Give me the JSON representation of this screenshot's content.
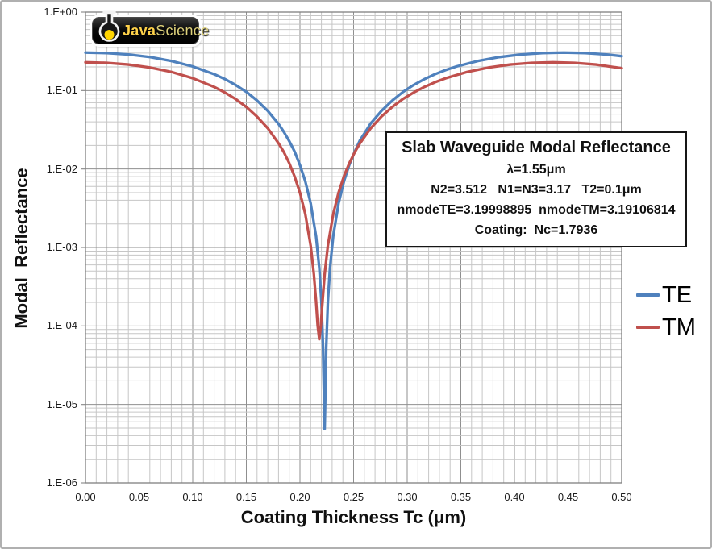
{
  "logo": {
    "text_bold": "Java",
    "text_light": "Science"
  },
  "annotation": {
    "lines": [
      "Slab Waveguide Modal Reflectance",
      "λ=1.55μm",
      "N2=3.512   N1=N3=3.17   T2=0.1μm",
      "nmodeTE=3.19998895  nmodeTM=3.19106814",
      "Coating:  Nc=1.7936"
    ]
  },
  "chart_data": {
    "type": "line",
    "title": "",
    "x_axis": {
      "label": "Coating Thickness Tc (μm)",
      "min": 0,
      "max": 0.5,
      "major_tick": 0.05,
      "minor_tick": 0.01,
      "ticklabels": [
        "0.00",
        "0.05",
        "0.10",
        "0.15",
        "0.20",
        "0.25",
        "0.30",
        "0.35",
        "0.40",
        "0.45",
        "0.50"
      ]
    },
    "y_axis": {
      "label": "Modal  Reflectance",
      "scale": "log10",
      "min": 1e-06,
      "max": 1,
      "decades": 6,
      "ticklabels": [
        "1.E+00",
        "1.E-01",
        "1.E-02",
        "1.E-03",
        "1.E-04",
        "1.E-05",
        "1.E-06"
      ]
    },
    "grid": {
      "major_color": "#8f8f8f",
      "minor_color": "#c6c6c6",
      "border_color": "#808080"
    },
    "legend": {
      "position": "right-middle",
      "entries": [
        "TE",
        "TM"
      ]
    },
    "series": [
      {
        "name": "TE",
        "color": "#4F81BD",
        "points": [
          [
            0,
            0.3047
          ],
          [
            0.02,
            0.3005
          ],
          [
            0.04,
            0.2879
          ],
          [
            0.06,
            0.2672
          ],
          [
            0.08,
            0.2382
          ],
          [
            0.1,
            0.2028
          ],
          [
            0.12,
            0.1617
          ],
          [
            0.13,
            0.14
          ],
          [
            0.14,
            0.1177
          ],
          [
            0.15,
            0.0962
          ],
          [
            0.16,
            0.0746
          ],
          [
            0.17,
            0.0551
          ],
          [
            0.18,
            0.0376
          ],
          [
            0.185,
            0.0297
          ],
          [
            0.19,
            0.0227
          ],
          [
            0.195,
            0.0167
          ],
          [
            0.2,
            0.01124
          ],
          [
            0.205,
            0.00696
          ],
          [
            0.21,
            0.00365
          ],
          [
            0.215,
            0.00139
          ],
          [
            0.218,
            0.000549
          ],
          [
            0.22,
            0.000203
          ],
          [
            0.2215,
            5.41e-05
          ],
          [
            0.2225,
            1.04e-05
          ],
          [
            0.223,
            4.84e-06
          ],
          [
            0.2235,
            1.02e-05
          ],
          [
            0.2245,
            5.34e-05
          ],
          [
            0.226,
            0.0002
          ],
          [
            0.228,
            0.000547
          ],
          [
            0.231,
            0.00139
          ],
          [
            0.236,
            0.00366
          ],
          [
            0.241,
            0.00697
          ],
          [
            0.246,
            0.01129
          ],
          [
            0.251,
            0.01655
          ],
          [
            0.256,
            0.02332
          ],
          [
            0.261,
            0.02973
          ],
          [
            0.266,
            0.03817
          ],
          [
            0.276,
            0.05505
          ],
          [
            0.286,
            0.07447
          ],
          [
            0.296,
            0.09583
          ],
          [
            0.306,
            0.1178
          ],
          [
            0.316,
            0.13975
          ],
          [
            0.326,
            0.16171
          ],
          [
            0.336,
            0.18281
          ],
          [
            0.346,
            0.20279
          ],
          [
            0.366,
            0.23821
          ],
          [
            0.386,
            0.26713
          ],
          [
            0.406,
            0.28791
          ],
          [
            0.426,
            0.30049
          ],
          [
            0.446,
            0.3047
          ],
          [
            0.466,
            0.30049
          ],
          [
            0.486,
            0.28794
          ],
          [
            0.5,
            0.27422
          ]
        ]
      },
      {
        "name": "TM",
        "color": "#C0504D",
        "points": [
          [
            0,
            0.2291
          ],
          [
            0.02,
            0.2254
          ],
          [
            0.04,
            0.2145
          ],
          [
            0.06,
            0.1968
          ],
          [
            0.08,
            0.1729
          ],
          [
            0.1,
            0.1437
          ],
          [
            0.12,
            0.1113
          ],
          [
            0.13,
            0.0944
          ],
          [
            0.14,
            0.0779
          ],
          [
            0.15,
            0.0619
          ],
          [
            0.16,
            0.0465
          ],
          [
            0.17,
            0.0331
          ],
          [
            0.18,
            0.0213
          ],
          [
            0.185,
            0.0164
          ],
          [
            0.19,
            0.0119
          ],
          [
            0.195,
            0.00803
          ],
          [
            0.2,
            0.005
          ],
          [
            0.205,
            0.00266
          ],
          [
            0.21,
            0.00105
          ],
          [
            0.213,
            0.000453
          ],
          [
            0.215,
            0.000207
          ],
          [
            0.2165,
            0.000102
          ],
          [
            0.218,
            6.78e-05
          ],
          [
            0.2195,
            0.000102
          ],
          [
            0.2205,
            0.000164
          ],
          [
            0.223,
            0.000453
          ],
          [
            0.226,
            0.00105
          ],
          [
            0.231,
            0.00266
          ],
          [
            0.236,
            0.00501
          ],
          [
            0.241,
            0.00809
          ],
          [
            0.246,
            0.01186
          ],
          [
            0.251,
            0.01628
          ],
          [
            0.256,
            0.02133
          ],
          [
            0.266,
            0.03308
          ],
          [
            0.276,
            0.04671
          ],
          [
            0.286,
            0.06174
          ],
          [
            0.296,
            0.07809
          ],
          [
            0.306,
            0.09426
          ],
          [
            0.316,
            0.11124
          ],
          [
            0.326,
            0.12776
          ],
          [
            0.336,
            0.14367
          ],
          [
            0.356,
            0.17285
          ],
          [
            0.376,
            0.1968
          ],
          [
            0.396,
            0.21453
          ],
          [
            0.416,
            0.22541
          ],
          [
            0.436,
            0.22908
          ],
          [
            0.456,
            0.22542
          ],
          [
            0.476,
            0.21455
          ],
          [
            0.5,
            0.19252
          ]
        ]
      }
    ]
  },
  "colors": {
    "te_line": "#4F81BD",
    "tm_line": "#C0504D",
    "logo_gold": "#ffd24a",
    "background": "#ffffff"
  }
}
